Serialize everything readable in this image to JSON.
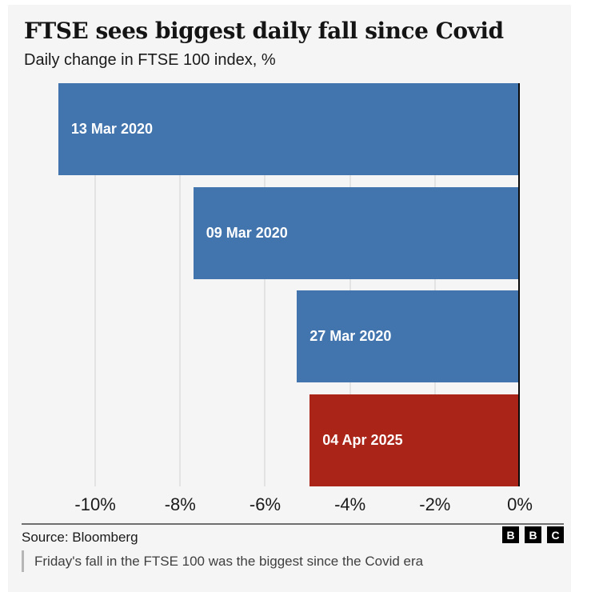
{
  "header": {
    "title": "FTSE sees biggest daily fall since Covid",
    "subtitle": "Daily change in FTSE 100 index, %"
  },
  "chart_data": {
    "type": "bar",
    "orientation": "horizontal",
    "title": "FTSE sees biggest daily fall since Covid",
    "subtitle": "Daily change in FTSE 100 index, %",
    "categories": [
      "13 Mar 2020",
      "09 Mar 2020",
      "27 Mar 2020",
      "04 Apr 2025"
    ],
    "values": [
      -10.87,
      -7.69,
      -5.25,
      -4.95
    ],
    "bar_colors": [
      "#4274ad",
      "#4274ad",
      "#4274ad",
      "#aa2418"
    ],
    "bar_label_position": "inside-left",
    "xlim": [
      -11,
      0
    ],
    "x_ticks": [
      -10,
      -8,
      -6,
      -4,
      -2,
      0
    ],
    "x_tick_labels": [
      "-10%",
      "-8%",
      "-6%",
      "-4%",
      "-2%",
      "0%"
    ],
    "grid": "vertical",
    "legend": "none"
  },
  "footer": {
    "source": "Source: Bloomberg",
    "logo_letters": [
      "B",
      "B",
      "C"
    ],
    "caption": "Friday's fall in the FTSE 100 was the biggest since the Covid era"
  },
  "colors": {
    "panel_background": "#f5f5f6",
    "page_background": "#ffffff",
    "bar_blue": "#4274ad",
    "bar_red": "#aa2418",
    "gridline": "#e3e3e3",
    "axis_line": "#0a0a0a",
    "text": "#1a1a1a",
    "bar_label_text": "#ffffff",
    "caption_text": "#3f3f3f",
    "rule": "#6f6f6f",
    "logo_background": "#000000"
  }
}
